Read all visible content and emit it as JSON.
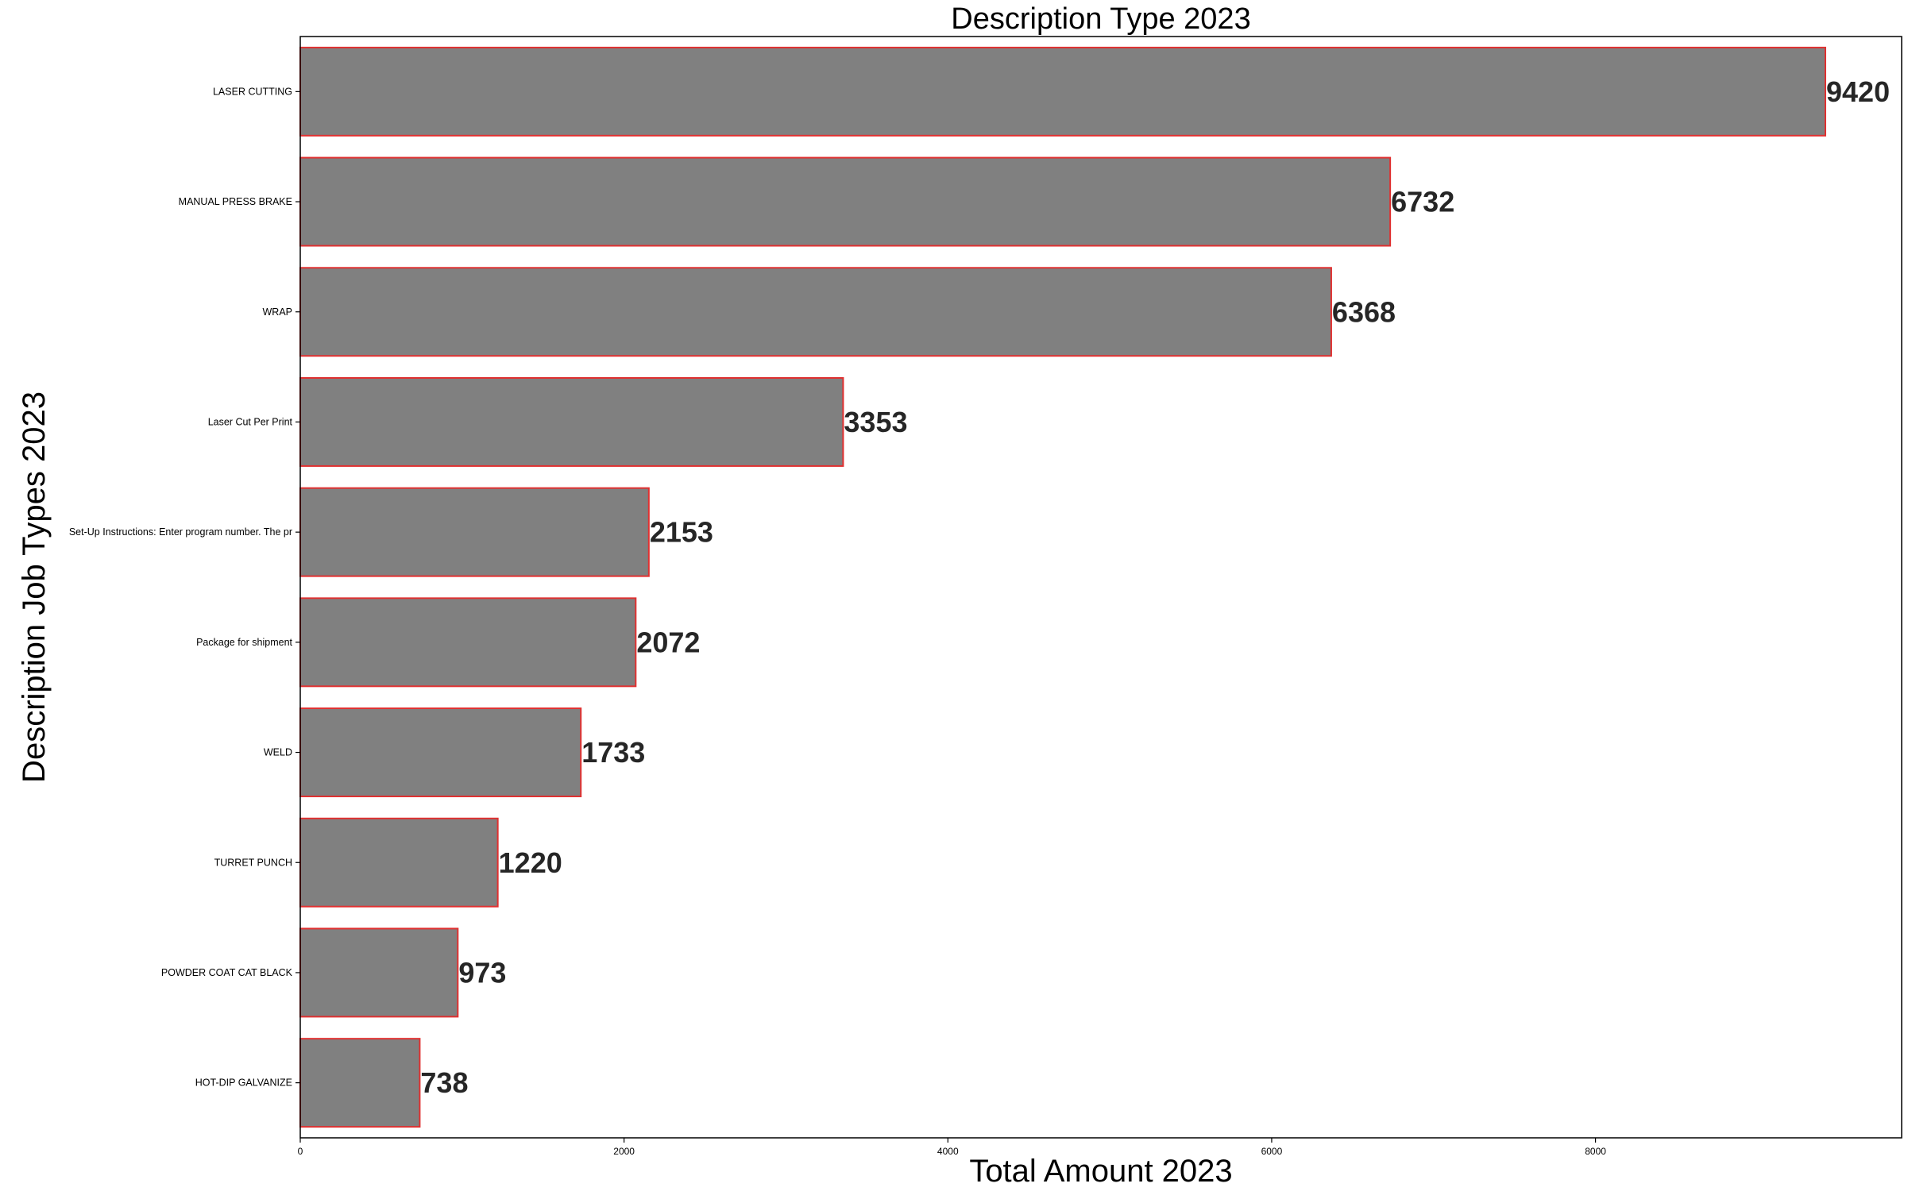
{
  "chart_data": {
    "type": "bar",
    "orientation": "horizontal",
    "title": "Description Type 2023",
    "xlabel": "Total Amount 2023",
    "ylabel": "Description Job Types 2023",
    "categories": [
      "LASER CUTTING",
      "MANUAL PRESS BRAKE",
      "WRAP",
      "Laser Cut Per Print",
      "Set-Up Instructions:  Enter program number. The pr",
      "Package for shipment",
      "WELD",
      "TURRET PUNCH",
      "POWDER COAT CAT BLACK",
      "HOT-DIP GALVANIZE"
    ],
    "values": [
      9420,
      6732,
      6368,
      3353,
      2153,
      2072,
      1733,
      1220,
      973,
      738
    ],
    "data_labels": [
      "9420",
      "6732",
      "6368",
      "3353",
      "2153",
      "2072",
      "1733",
      "1220",
      "973",
      "738"
    ],
    "xlim": [
      0,
      9891
    ],
    "xticks": [
      0,
      2000,
      4000,
      6000,
      8000
    ],
    "xtick_labels": [
      "0",
      "2000",
      "4000",
      "6000",
      "8000"
    ],
    "grid": false,
    "legend": "none",
    "colors": {
      "bar_fill": "#808080",
      "bar_edge": "#e03030",
      "axis": "#000000",
      "data_label": "#262626"
    }
  }
}
